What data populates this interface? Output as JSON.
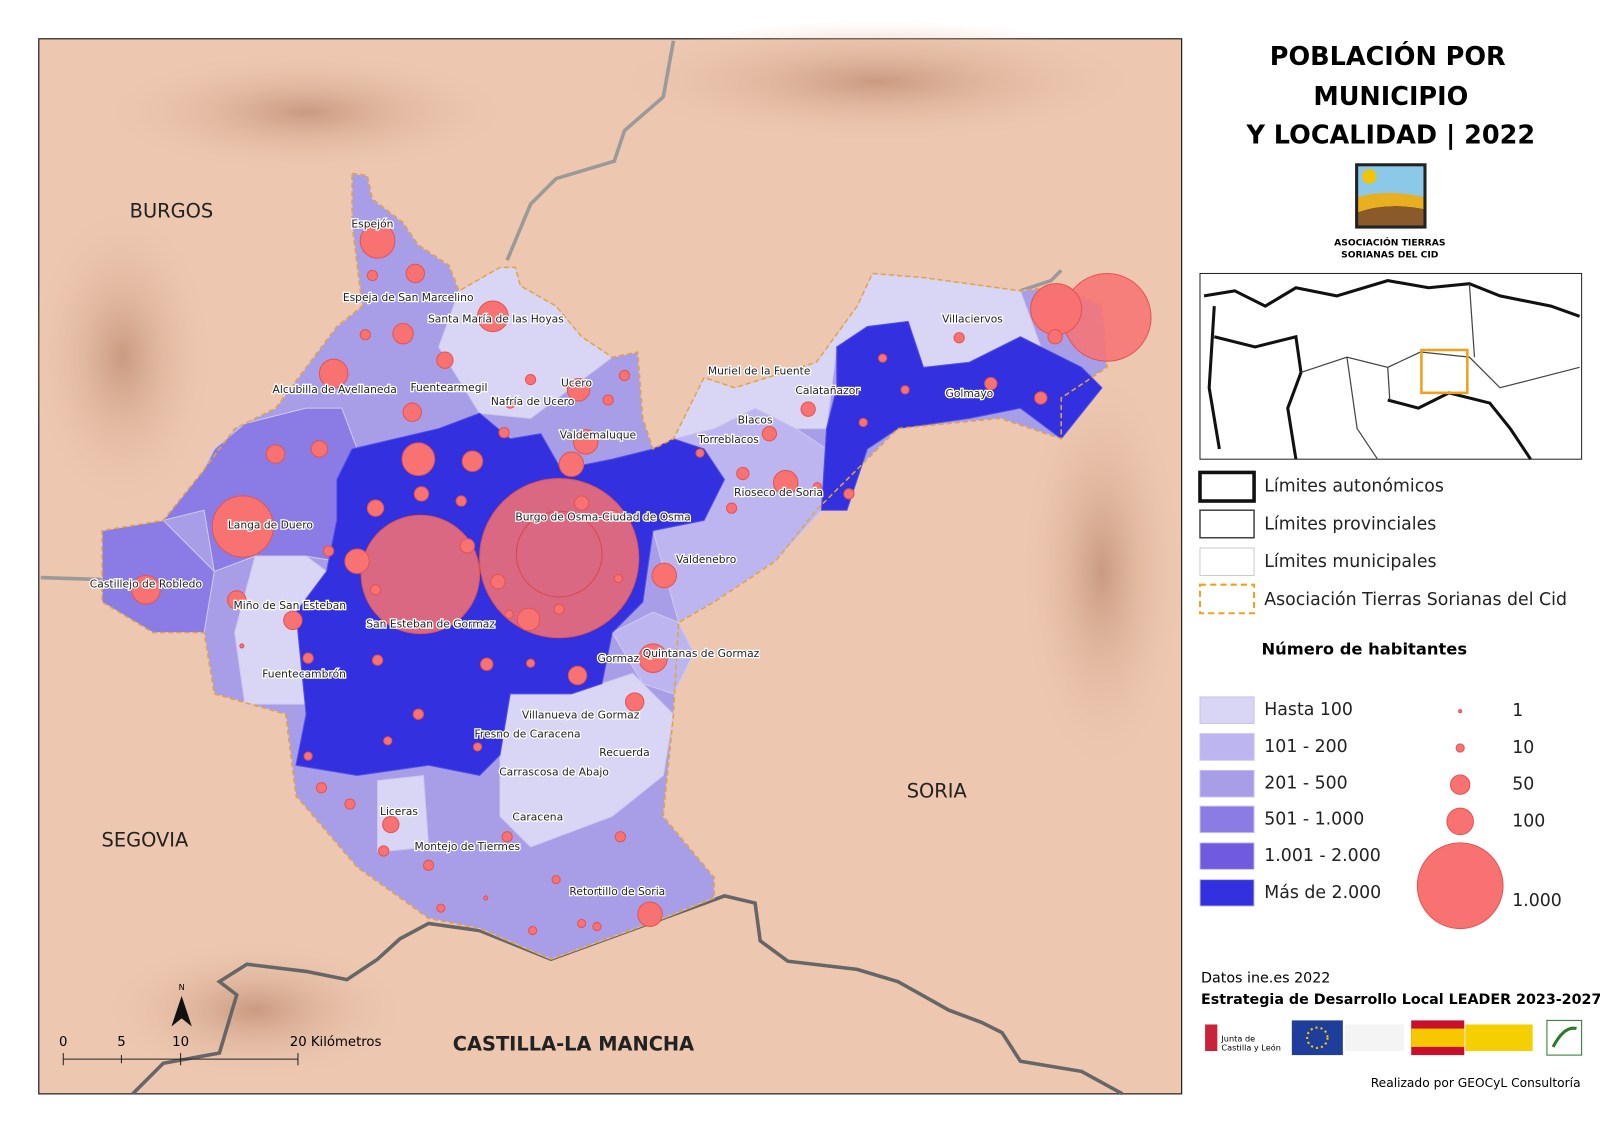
{
  "title": [
    "POBLACIÓN POR",
    "MUNICIPIO",
    "Y LOCALIDAD | 2022"
  ],
  "logo_text": [
    "ASOCIACIÓN TIERRAS",
    "SORIANAS DEL CID"
  ],
  "regions": [
    "BURGOS",
    "SEGOVIA",
    "SORIA",
    "CASTILLA-LA MANCHA"
  ],
  "municipalities": [
    "Espejón",
    "Espeja de San Marcelino",
    "Santa María de las Hoyas",
    "Alcubilla de Avellaneda",
    "Fuentearmegil",
    "Nafría de Ucero",
    "Ucero",
    "Valdemaluque",
    "Muriel de la Fuente",
    "Calatañazor",
    "Villaciervos",
    "Golmayo",
    "Blacos",
    "Torreblacos",
    "Rioseco de Soria",
    "Burgo de Osma-Ciudad de Osma",
    "Valdenebro",
    "Langa de Duero",
    "Castillejo de Robledo",
    "Miño de San Esteban",
    "San Esteban de Gormaz",
    "Fuentecambrón",
    "Quintanas de Gormaz",
    "Gormaz",
    "Villanueva de Gormaz",
    "Fresno de Caracena",
    "Recuerda",
    "Carrascosa de Abajo",
    "Caracena",
    "Liceras",
    "Montejo de Tiermes",
    "Retortillo de Soria"
  ],
  "legend": {
    "lines": [
      "Límites autonómicos",
      "Límites provinciales",
      "Límites municipales",
      "Asociación Tierras Sorianas del Cid"
    ],
    "population_title": "Número de habitantes",
    "classes": [
      "Hasta 100",
      "101 - 200",
      "201 - 500",
      "501 - 1.000",
      "1.001 - 2.000",
      "Más de 2.000"
    ],
    "sizes": [
      "1",
      "10",
      "50",
      "100",
      "1.000"
    ]
  },
  "scale": {
    "labels": [
      "0",
      "5",
      "10",
      "20 Kilómetros"
    ],
    "north": "N"
  },
  "source": "Datos ine.es 2022",
  "strategy": "Estrategia de Desarrollo Local LEADER 2023-2027",
  "sponsor": [
    "Junta de",
    "Castilla y León"
  ],
  "credit": "Realizado por GEOCyL Consultoría"
}
